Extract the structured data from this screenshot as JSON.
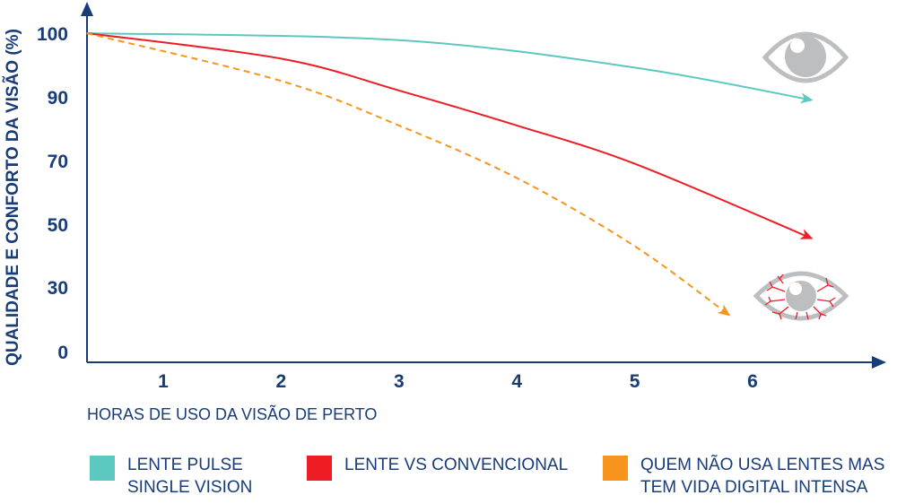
{
  "chart_data": {
    "type": "line",
    "ylabel": "QUALIDADE E CONFORTO DA VISÃO (%)",
    "xlabel": "HORAS DE USO DA VISÃO DE PERTO",
    "x_ticks": [
      "1",
      "2",
      "3",
      "4",
      "5",
      "6"
    ],
    "y_ticks": [
      "100",
      "90",
      "70",
      "50",
      "30",
      "0"
    ],
    "y_tick_values": [
      100,
      90,
      70,
      50,
      30,
      0
    ],
    "grid": false,
    "legend_position": "bottom",
    "series": [
      {
        "name": "LENTE PULSE\nSINGLE VISION",
        "color": "#5cc8bf",
        "dashed": false,
        "x": [
          0.35,
          3,
          5,
          6.5
        ],
        "y": [
          100,
          98.9,
          94.6,
          89
        ]
      },
      {
        "name": "LENTE VS CONVENCIONAL",
        "color": "#ee1c25",
        "dashed": false,
        "x": [
          0.35,
          2,
          3,
          4,
          5,
          6.5
        ],
        "y": [
          100,
          96,
          91,
          81,
          69,
          45.5
        ]
      },
      {
        "name": "QUEM NÃO USA LENTES MAS\nTEM VIDA DIGITAL INTENSA",
        "color": "#f7941d",
        "dashed": true,
        "x": [
          0.35,
          2,
          3,
          4,
          5,
          5.8
        ],
        "y": [
          100,
          92.5,
          81,
          64.5,
          43,
          17
        ]
      }
    ],
    "annotations": [
      "healthy-eye-icon",
      "red-irritated-eye-icon"
    ]
  },
  "colors": {
    "axis": "#173c78",
    "eye": "#bcbec0",
    "veins": "#ee1c25"
  }
}
